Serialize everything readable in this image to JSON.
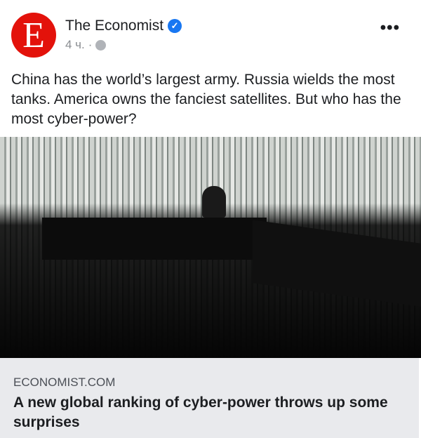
{
  "post": {
    "avatar_letter": "E",
    "author": "The Economist",
    "verified_icon": "check",
    "time": "4 ч.",
    "separator": "·",
    "privacy_icon": "globe-icon",
    "more_icon": "•••",
    "text": "China has the world’s largest army. Russia wields the most tanks. America owns the fanciest satellites. But who has the most cyber-power?"
  },
  "link_preview": {
    "domain": "ECONOMIST.COM",
    "headline": "A new global ranking of cyber-power throws up some surprises"
  },
  "colors": {
    "brand": "#e3120b",
    "verified": "#1877f2",
    "preview_bg": "#e9eaed"
  }
}
